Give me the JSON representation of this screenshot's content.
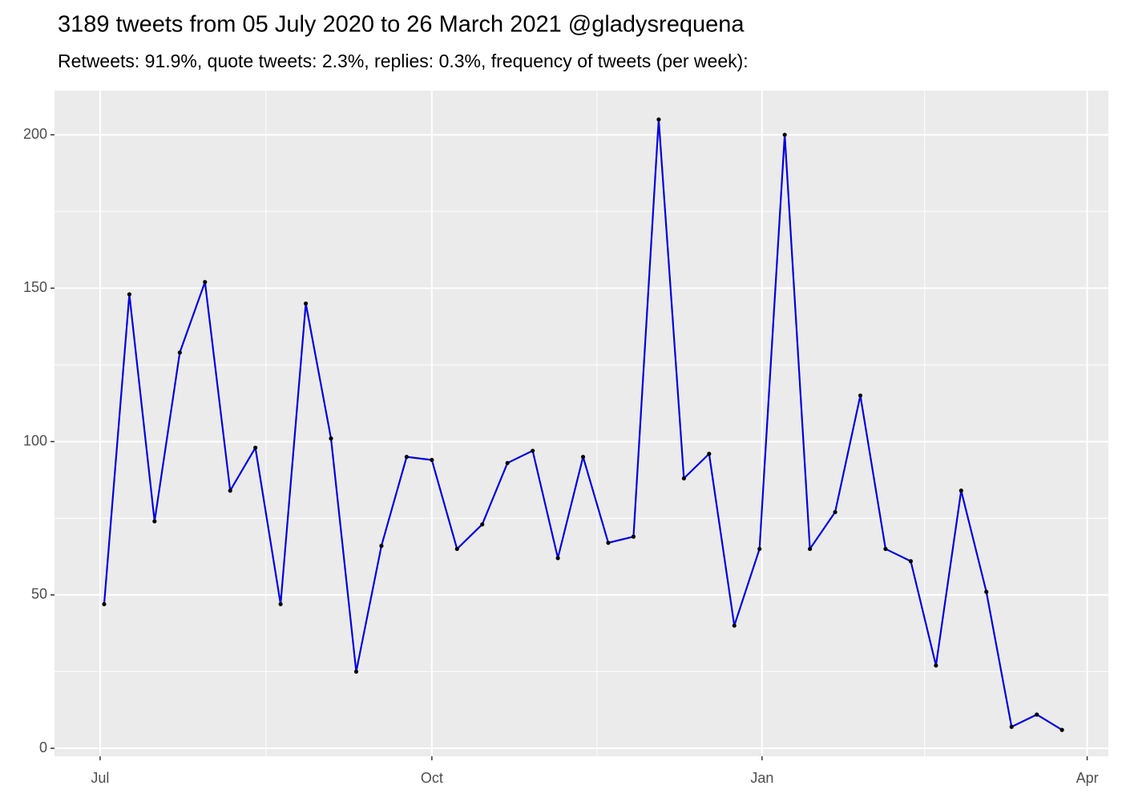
{
  "chart_data": {
    "type": "line",
    "title": "3189 tweets from 05 July 2020 to 26 March 2021 @gladysrequena",
    "subtitle": "Retweets: 91.9%, quote tweets: 2.3%, replies: 0.3%, frequency of tweets (per week):",
    "x": [
      1,
      2,
      3,
      4,
      5,
      6,
      7,
      8,
      9,
      10,
      11,
      12,
      13,
      14,
      15,
      16,
      17,
      18,
      19,
      20,
      21,
      22,
      23,
      24,
      25,
      26,
      27,
      28,
      29,
      30,
      31,
      32,
      33,
      34,
      35,
      36,
      37,
      38,
      39
    ],
    "series": [
      {
        "color": "#0000e0",
        "values": [
          47,
          148,
          74,
          129,
          152,
          84,
          98,
          47,
          145,
          101,
          25,
          66,
          95,
          94,
          65,
          73,
          93,
          97,
          62,
          95,
          67,
          69,
          205,
          88,
          96,
          40,
          65,
          200,
          65,
          77,
          115,
          65,
          61,
          27,
          84,
          51,
          7,
          11,
          6
        ]
      }
    ],
    "xlim": [
      -0.97,
      40.84
    ],
    "xticks": [
      {
        "value": 0.84,
        "label": "Jul"
      },
      {
        "value": 14.0,
        "label": "Oct"
      },
      {
        "value": 27.1,
        "label": "Jan"
      },
      {
        "value": 40.0,
        "label": "Apr"
      }
    ],
    "ylim": [
      -2.6,
      214.4
    ],
    "yticks": [
      0,
      50,
      100,
      150,
      200
    ],
    "grid": true
  }
}
